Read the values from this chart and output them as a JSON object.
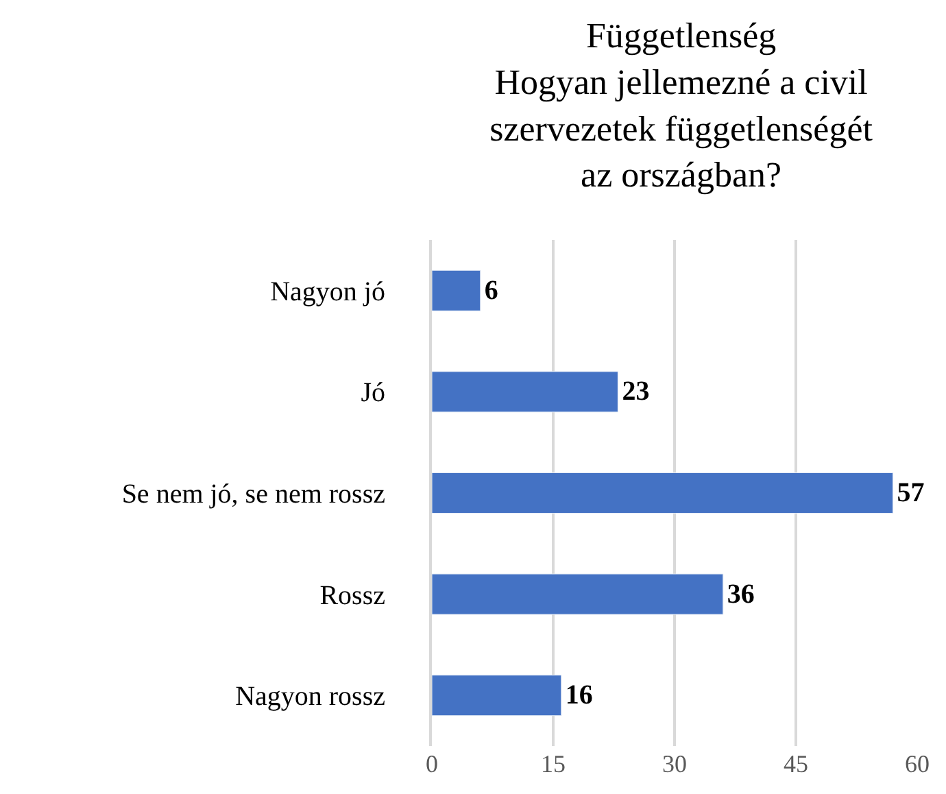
{
  "chart_data": {
    "type": "bar",
    "orientation": "horizontal",
    "title": "Függetlenség\nHogyan jellemezné a civil\nszervezetek függetlenségét\naz országban?",
    "categories": [
      "Nagyon jó",
      "Jó",
      "Se nem jó, se nem rossz",
      "Rossz",
      "Nagyon rossz"
    ],
    "values": [
      6,
      23,
      57,
      36,
      16
    ],
    "color": "#4472c4",
    "xlim": [
      0,
      60
    ],
    "xticks": [
      0,
      15,
      30,
      45,
      60
    ],
    "grid": "x",
    "data_labels": true
  }
}
